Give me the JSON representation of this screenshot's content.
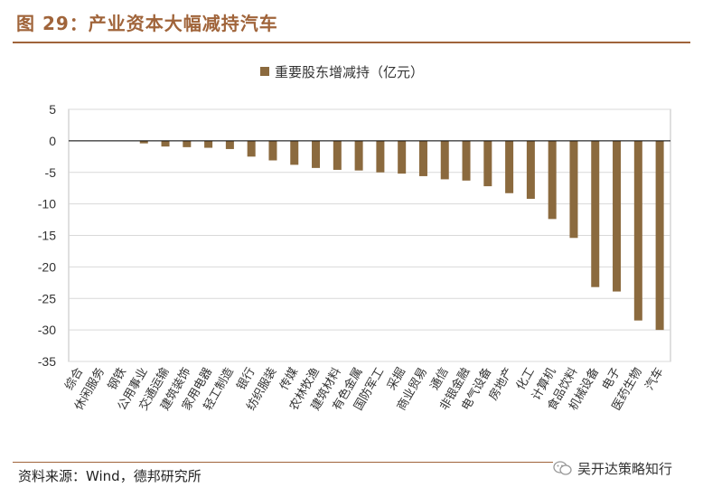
{
  "figure": {
    "title": "图 29：产业资本大幅减持汽车",
    "source": "资料来源：Wind，德邦研究所",
    "watermark": "吴开达策略知行"
  },
  "colors": {
    "accent": "#a0643a",
    "bar": "#8b6a3e",
    "grid": "#d9d9d9"
  },
  "chart_data": {
    "type": "bar",
    "title": "",
    "legend": "重要股东增减持（亿元）",
    "legend_position": "top-center",
    "xlabel": "",
    "ylabel": "",
    "ylim": [
      -35,
      5
    ],
    "yticks": [
      5,
      0,
      -5,
      -10,
      -15,
      -20,
      -25,
      -30,
      -35
    ],
    "grid": true,
    "categories": [
      "综合",
      "休闲服务",
      "钢铁",
      "公用事业",
      "交通运输",
      "建筑装饰",
      "家用电器",
      "轻工制造",
      "银行",
      "纺织服装",
      "传媒",
      "农林牧渔",
      "建筑材料",
      "有色金属",
      "国防军工",
      "采掘",
      "商业贸易",
      "通信",
      "非银金融",
      "电气设备",
      "房地产",
      "化工",
      "计算机",
      "食品饮料",
      "机械设备",
      "电子",
      "医药生物",
      "汽车"
    ],
    "series": [
      {
        "name": "重要股东增减持（亿元）",
        "values": [
          0.05,
          0.0,
          0.0,
          -0.4,
          -0.9,
          -1.0,
          -1.1,
          -1.3,
          -2.5,
          -3.1,
          -3.8,
          -4.3,
          -4.6,
          -4.7,
          -5.0,
          -5.2,
          -5.6,
          -6.1,
          -6.3,
          -7.2,
          -8.3,
          -9.2,
          -12.4,
          -15.4,
          -23.2,
          -23.9,
          -28.5,
          -30.0
        ]
      }
    ]
  }
}
